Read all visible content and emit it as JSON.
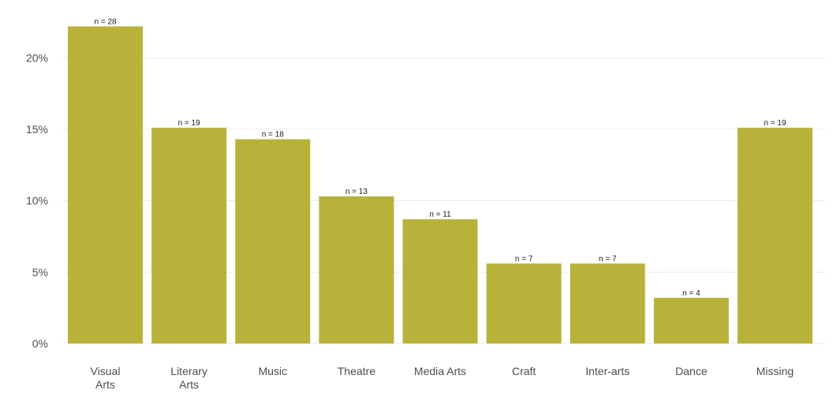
{
  "chart_data": {
    "type": "bar",
    "categories": [
      "Visual Arts",
      "Literary Arts",
      "Music",
      "Theatre",
      "Media Arts",
      "Craft",
      "Inter-arts",
      "Dance",
      "Missing"
    ],
    "category_lines": [
      [
        "Visual",
        "Arts"
      ],
      [
        "Literary",
        "Arts"
      ],
      [
        "Music"
      ],
      [
        "Theatre"
      ],
      [
        "Media Arts"
      ],
      [
        "Craft"
      ],
      [
        "Inter-arts"
      ],
      [
        "Dance"
      ],
      [
        "Missing"
      ]
    ],
    "values": [
      22.2,
      15.1,
      14.3,
      10.3,
      8.7,
      5.6,
      5.6,
      3.2,
      15.1
    ],
    "data_labels": [
      "n = 28",
      "n = 19",
      "n = 18",
      "n = 13",
      "n = 11",
      "n = 7",
      "n = 7",
      "n = 4",
      "n = 19"
    ],
    "title": "",
    "xlabel": "",
    "ylabel": "",
    "ylim": [
      0,
      22.5
    ],
    "yticks": [
      0,
      5,
      10,
      15,
      20
    ],
    "ytick_labels": [
      "0%",
      "5%",
      "10%",
      "15%",
      "20%"
    ],
    "grid": true,
    "legend": "none",
    "bar_color": "#b8b23a"
  }
}
